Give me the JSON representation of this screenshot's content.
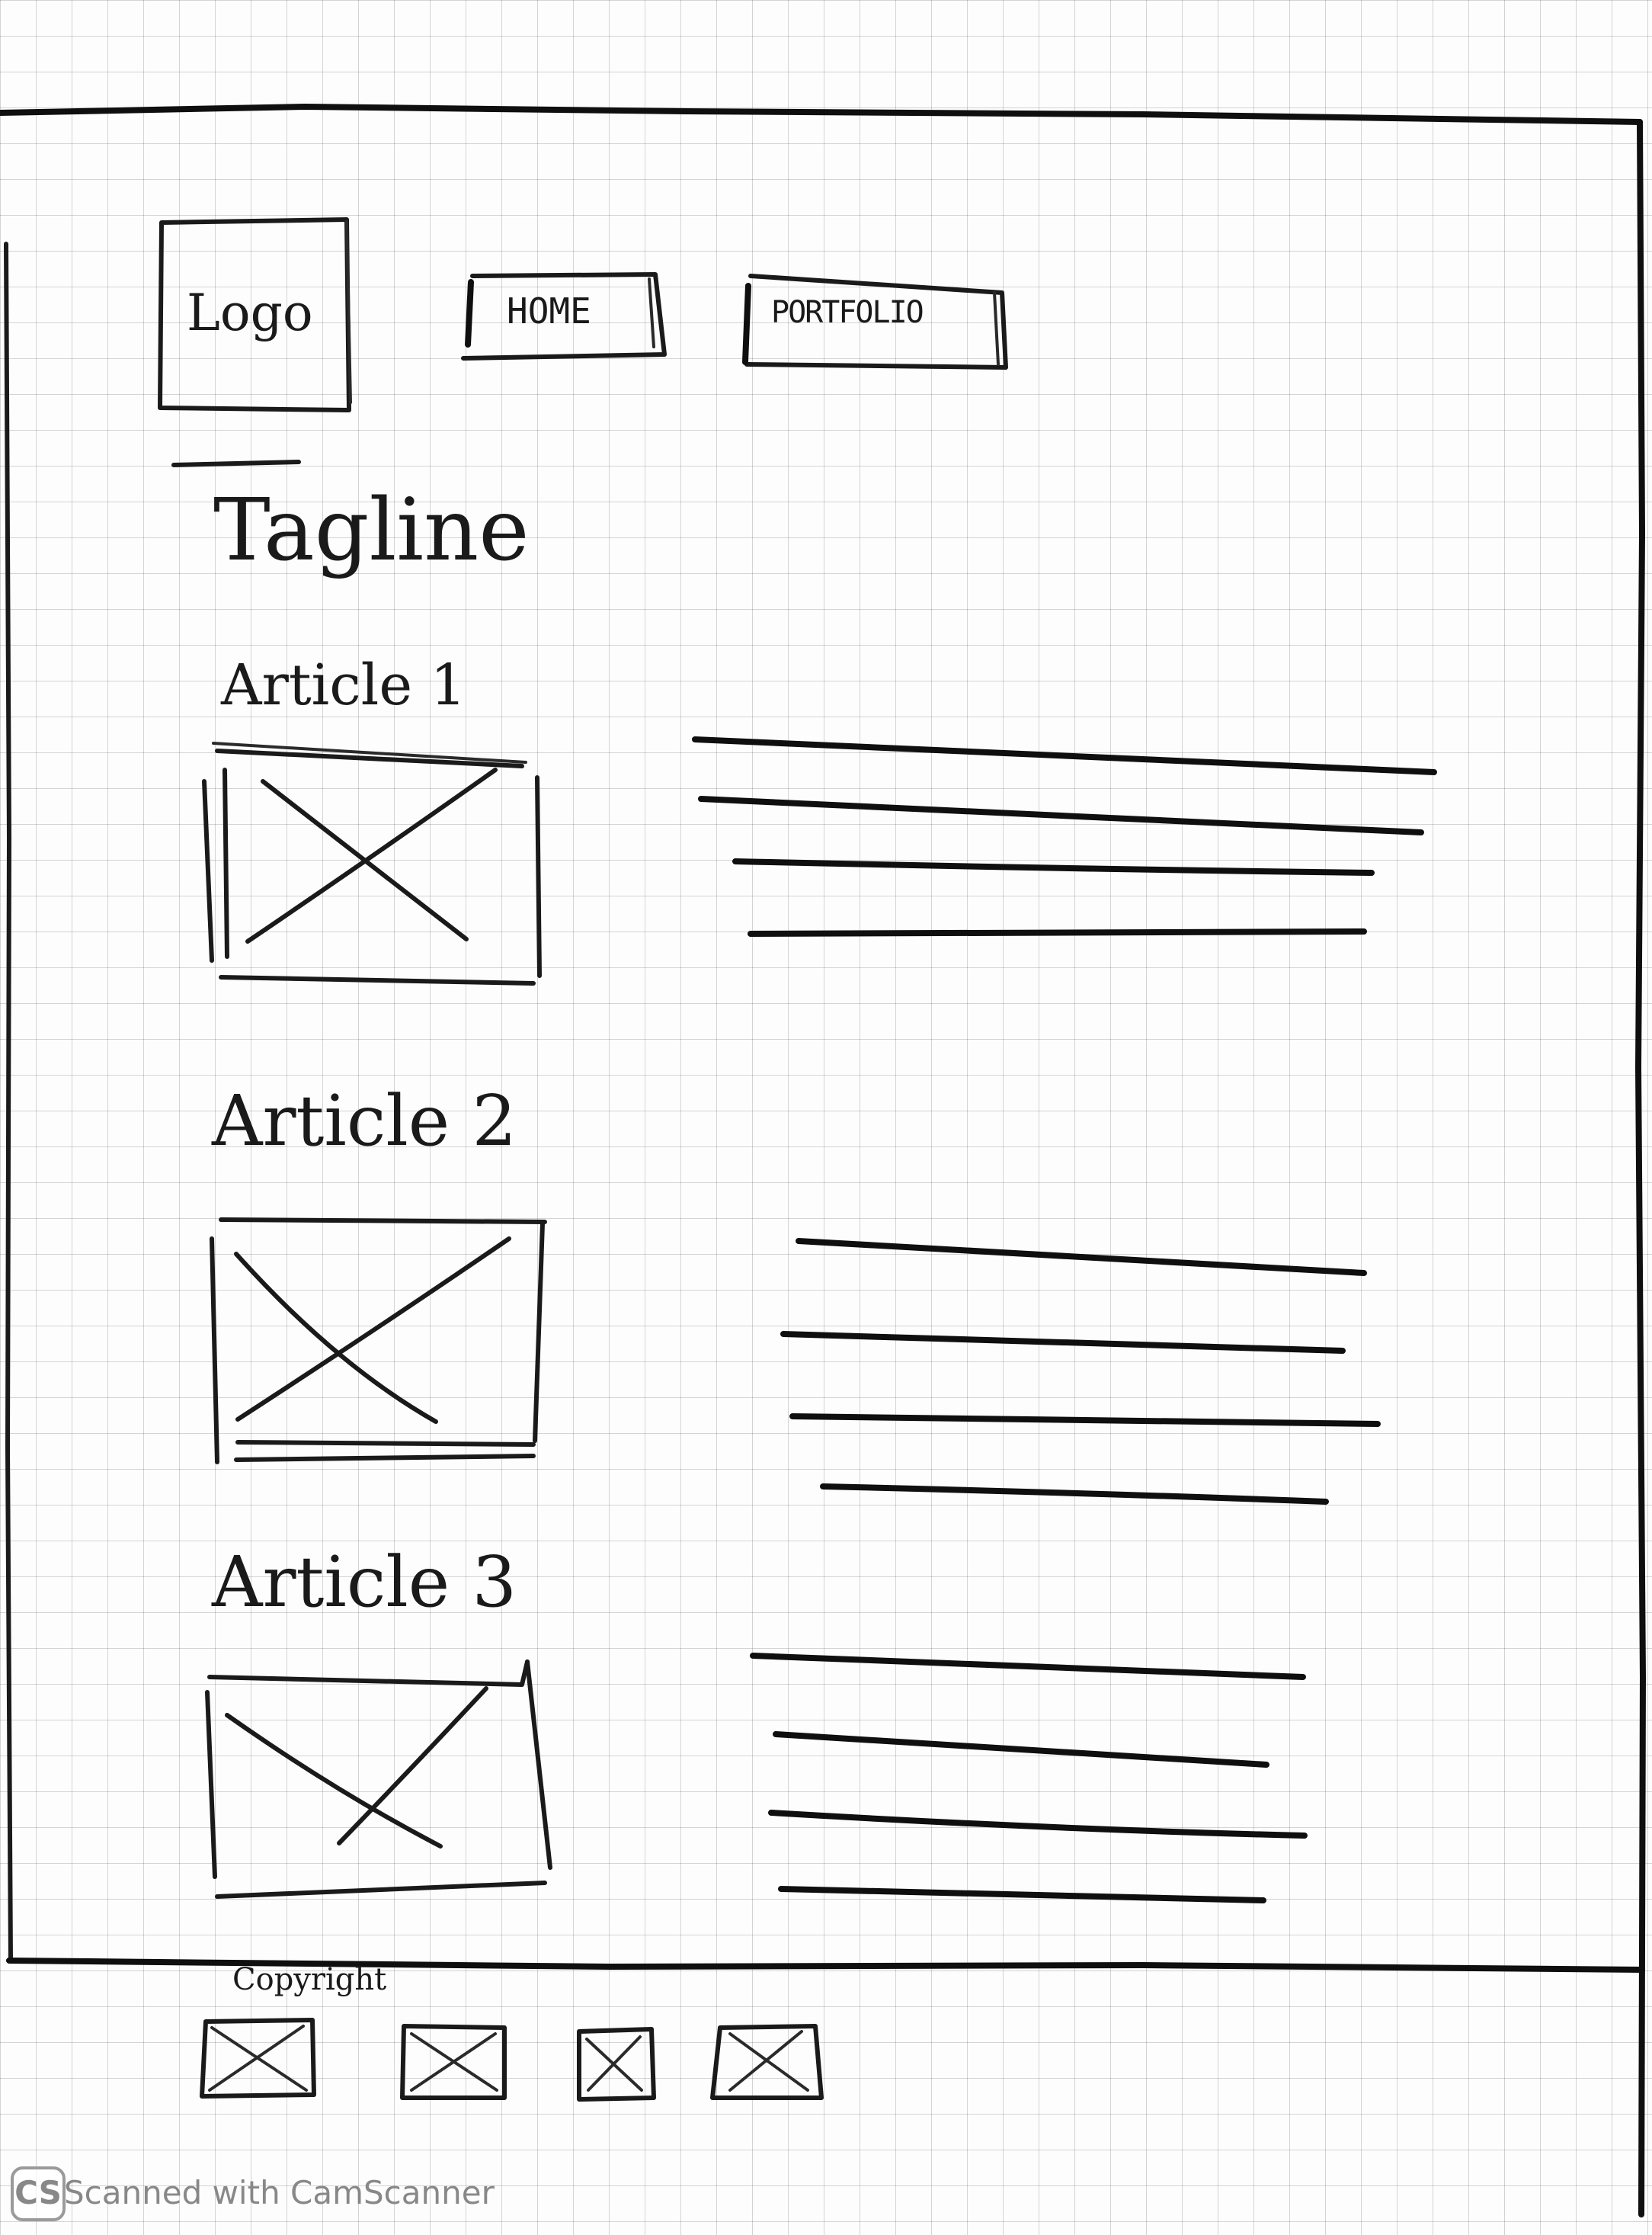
{
  "header": {
    "logo_label": "Logo",
    "nav": [
      {
        "label": "HOME"
      },
      {
        "label": "PORTFOLIO"
      }
    ]
  },
  "hero": {
    "tagline": "Tagline"
  },
  "articles": [
    {
      "title": "Article 1",
      "image": "image-placeholder",
      "text_lines": 4
    },
    {
      "title": "Article 2",
      "image": "image-placeholder",
      "text_lines": 4
    },
    {
      "title": "Article 3",
      "image": "image-placeholder",
      "text_lines": 4
    }
  ],
  "footer": {
    "copyright": "Copyright",
    "icons": [
      "image-placeholder",
      "image-placeholder",
      "image-placeholder",
      "image-placeholder"
    ]
  },
  "watermark": {
    "badge": "CS",
    "text": "Scanned with CamScanner"
  },
  "colors": {
    "paper": "#fdfdfd",
    "grid": "#d6d6d6",
    "ink": "#1a1a1a",
    "watermark": "#888888"
  }
}
